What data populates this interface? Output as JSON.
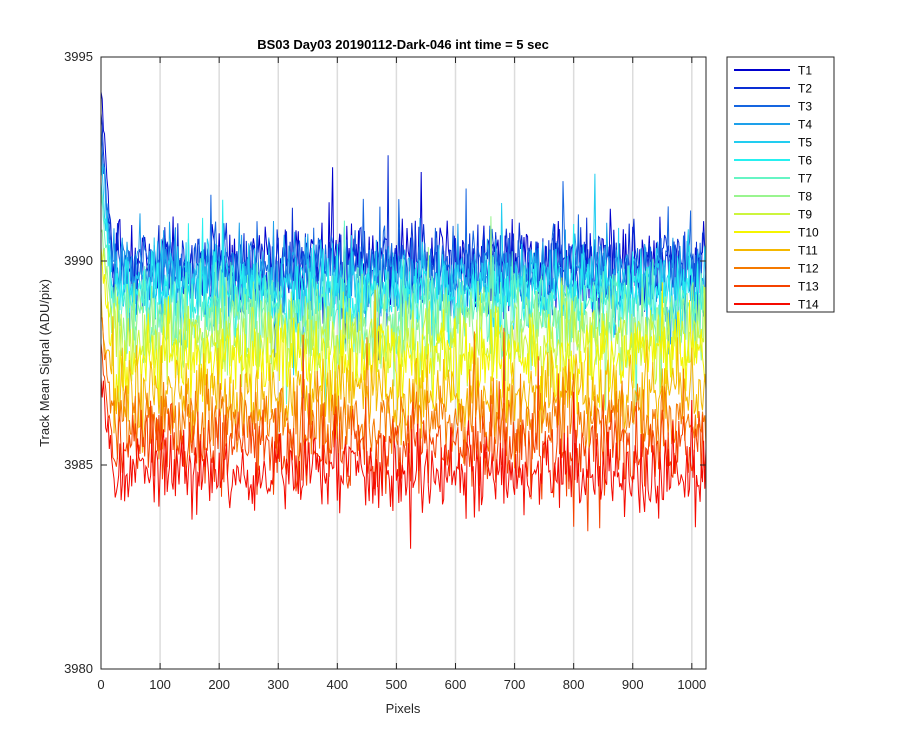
{
  "chart_data": {
    "type": "line",
    "title": "BS03 Day03 20190112-Dark-046 int time = 5 sec",
    "xlabel": "Pixels",
    "ylabel": "Track Mean Signal (ADU/pix)",
    "xlim": [
      0,
      1024
    ],
    "ylim": [
      3980,
      3995
    ],
    "xticks": [
      0,
      100,
      200,
      300,
      400,
      500,
      600,
      700,
      800,
      900,
      1000
    ],
    "yticks": [
      3980,
      3985,
      3990,
      3995
    ],
    "xtick_labels": [
      "0",
      "100",
      "200",
      "300",
      "400",
      "500",
      "600",
      "700",
      "800",
      "900",
      "1000"
    ],
    "ytick_labels": [
      "3980",
      "3985",
      "3990",
      "3995"
    ],
    "grid": "vertical",
    "legend_position": "outside-top-right",
    "series": [
      {
        "name": "T1",
        "color": "#0000cd",
        "mean": 3990.0,
        "spread": 0.65,
        "start": 3994.5
      },
      {
        "name": "T2",
        "color": "#0a2fd4",
        "mean": 3989.9,
        "spread": 0.65,
        "start": 3993.2
      },
      {
        "name": "T3",
        "color": "#1565e0",
        "mean": 3989.8,
        "spread": 0.65,
        "start": 3993.0
      },
      {
        "name": "T4",
        "color": "#1ea0ea",
        "mean": 3989.6,
        "spread": 0.65,
        "start": 3992.7
      },
      {
        "name": "T5",
        "color": "#22cdf0",
        "mean": 3989.4,
        "spread": 0.65,
        "start": 3992.3
      },
      {
        "name": "T6",
        "color": "#26f0f0",
        "mean": 3989.1,
        "spread": 0.65,
        "start": 3992.0
      },
      {
        "name": "T7",
        "color": "#66f5c4",
        "mean": 3988.8,
        "spread": 0.65,
        "start": 3991.5
      },
      {
        "name": "T8",
        "color": "#99f58f",
        "mean": 3988.4,
        "spread": 0.65,
        "start": 3991.0
      },
      {
        "name": "T9",
        "color": "#ccf53d",
        "mean": 3988.0,
        "spread": 0.65,
        "start": 3990.5
      },
      {
        "name": "T10",
        "color": "#f5f500",
        "mean": 3987.6,
        "spread": 0.65,
        "start": 3990.0
      },
      {
        "name": "T11",
        "color": "#f5b800",
        "mean": 3986.7,
        "spread": 0.65,
        "start": 3989.0
      },
      {
        "name": "T12",
        "color": "#f57a00",
        "mean": 3986.1,
        "spread": 0.65,
        "start": 3988.5
      },
      {
        "name": "T13",
        "color": "#f54200",
        "mean": 3985.4,
        "spread": 0.65,
        "start": 3988.0
      },
      {
        "name": "T14",
        "color": "#f50a00",
        "mean": 3984.8,
        "spread": 0.65,
        "start": 3987.3
      }
    ]
  }
}
